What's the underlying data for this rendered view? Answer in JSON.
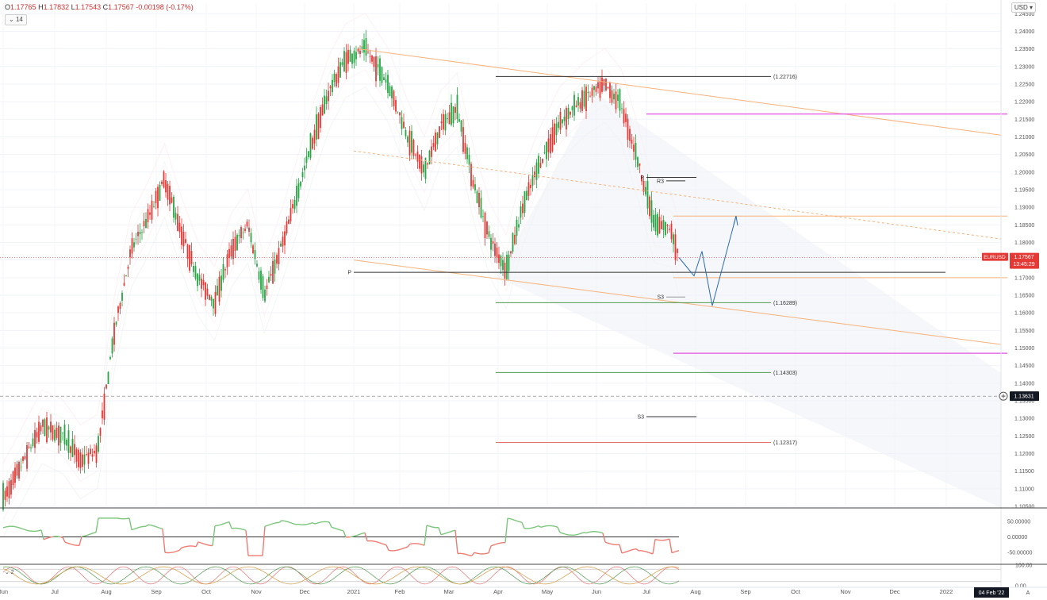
{
  "header": {
    "ohlc": [
      {
        "k": "O",
        "v": "1.17765"
      },
      {
        "k": "H",
        "v": "1.17832"
      },
      {
        "k": "L",
        "v": "1.17543"
      },
      {
        "k": "C",
        "v": "1.17567"
      },
      {
        "k": "",
        "v": "-0.00198 (-0.17%)"
      }
    ],
    "interval_label": "14",
    "currency_label": "USD"
  },
  "time_label": "04 Feb '22",
  "auto_label": "A",
  "colors": {
    "up": "#26a644",
    "down": "#e53935",
    "trend": "#f7b27a",
    "magenta": "#e66ce6",
    "wave": "#2b6cb0",
    "green_line": "#4f9a4f",
    "red_line": "#e57373"
  },
  "chart_data": [
    {
      "type": "candlestick",
      "symbol": "EURUSD",
      "y_ticks": [
        "1.24500",
        "1.24000",
        "1.23500",
        "1.23000",
        "1.22500",
        "1.22000",
        "1.21500",
        "1.21000",
        "1.20500",
        "1.20000",
        "1.19500",
        "1.19000",
        "1.18500",
        "1.18000",
        "1.17500",
        "1.17000",
        "1.16500",
        "1.16000",
        "1.15500",
        "1.15000",
        "1.14500",
        "1.14000",
        "1.13500",
        "1.13000",
        "1.12500",
        "1.12000",
        "1.11500",
        "1.11000",
        "1.10500"
      ],
      "ylim": [
        1.105,
        1.248
      ],
      "x_ticks": [
        "Jun",
        "Jul",
        "Aug",
        "Sep",
        "Oct",
        "Nov",
        "Dec",
        "2021",
        "Feb",
        "Mar",
        "Apr",
        "May",
        "Jun",
        "Jul",
        "Aug",
        "Sep",
        "Oct",
        "Nov",
        "Dec",
        "2022"
      ],
      "price_label": {
        "symbol": "EURUSD",
        "price": "1.17567",
        "countdown": "13:45:29",
        "value": 1.17567
      },
      "crosshair_label": {
        "price": "1.13631",
        "value": 1.13631
      },
      "anchors": [
        [
          "Jun",
          1.107
        ],
        [
          "Jun",
          1.128
        ],
        [
          "Jul",
          1.125
        ],
        [
          "Jul",
          1.118
        ],
        [
          "Jul",
          1.121
        ],
        [
          "Aug",
          1.155
        ],
        [
          "Aug",
          1.178
        ],
        [
          "Aug",
          1.187
        ],
        [
          "Sep",
          1.198
        ],
        [
          "Sep",
          1.183
        ],
        [
          "Sep",
          1.17
        ],
        [
          "Oct",
          1.163
        ],
        [
          "Oct",
          1.178
        ],
        [
          "Oct",
          1.185
        ],
        [
          "Nov",
          1.165
        ],
        [
          "Nov",
          1.178
        ],
        [
          "Nov",
          1.193
        ],
        [
          "Dec",
          1.209
        ],
        [
          "Dec",
          1.223
        ],
        [
          "Dec",
          1.232
        ],
        [
          "2021",
          1.235
        ],
        [
          "2021",
          1.225
        ],
        [
          "Feb",
          1.21
        ],
        [
          "Feb",
          1.2
        ],
        [
          "Feb",
          1.213
        ],
        [
          "Mar",
          1.218
        ],
        [
          "Mar",
          1.197
        ],
        [
          "Mar",
          1.181
        ],
        [
          "Apr",
          1.172
        ],
        [
          "Apr",
          1.19
        ],
        [
          "Apr",
          1.202
        ],
        [
          "May",
          1.214
        ],
        [
          "May",
          1.221
        ],
        [
          "Jun",
          1.225
        ],
        [
          "Jun",
          1.219
        ],
        [
          "Jun",
          1.203
        ],
        [
          "Jul",
          1.185
        ],
        [
          "Jul",
          1.184
        ],
        [
          "Jul",
          1.1757
        ]
      ],
      "levels": [
        {
          "value": 1.22716,
          "label": "(1.22716)",
          "from": "Apr",
          "to": "Aug",
          "color": "#333333"
        },
        {
          "value": 1.2165,
          "label": "",
          "from": "Jul",
          "to": "2022",
          "color": "#e66ce6"
        },
        {
          "value": 1.1985,
          "label": "P",
          "from": "Jun",
          "to": "Jul",
          "color": "#333333"
        },
        {
          "value": 1.1975,
          "label": "R3",
          "from": "Jul",
          "to": "Jul",
          "color": "#333333"
        },
        {
          "value": 1.1875,
          "label": "",
          "from": "Jul",
          "to": "2022",
          "color": "#f7b27a"
        },
        {
          "value": 1.1715,
          "label": "P",
          "from": "2021",
          "to": "Dec",
          "color": "#333333"
        },
        {
          "value": 1.17,
          "label": "",
          "from": "Jul",
          "to": "2022",
          "color": "#f7b27a"
        },
        {
          "value": 1.1645,
          "label": "S3",
          "from": "Jul",
          "to": "Jul",
          "color": "#999999"
        },
        {
          "value": 1.16289,
          "label": "(1.16289)",
          "from": "Apr",
          "to": "Aug",
          "color": "#4f9a4f"
        },
        {
          "value": 1.1485,
          "label": "",
          "from": "Jul",
          "to": "2022",
          "color": "#e66ce6"
        },
        {
          "value": 1.14303,
          "label": "(1.14303)",
          "from": "Apr",
          "to": "Aug",
          "color": "#4f9a4f"
        },
        {
          "value": 1.1305,
          "label": "S3",
          "from": "Jun",
          "to": "Jul",
          "color": "#333333"
        },
        {
          "value": 1.12317,
          "label": "(1.12317)",
          "from": "Apr",
          "to": "Aug",
          "color": "#e57373"
        }
      ],
      "wave_projection": [
        [
          "Jul",
          1.1757
        ],
        [
          "Jul",
          1.1705
        ],
        [
          "Aug",
          1.1775
        ],
        [
          "Aug",
          1.162
        ],
        [
          "Sep",
          1.1875
        ]
      ]
    },
    {
      "type": "line",
      "name": "oscillator",
      "y_ticks": [
        "50.00000",
        "0.00000",
        "-50.00000"
      ],
      "ylim": [
        -80,
        80
      ]
    },
    {
      "type": "line",
      "name": "stochastic",
      "y_ticks": [
        "100.00",
        "0.00"
      ],
      "ylim": [
        0,
        100
      ]
    }
  ]
}
